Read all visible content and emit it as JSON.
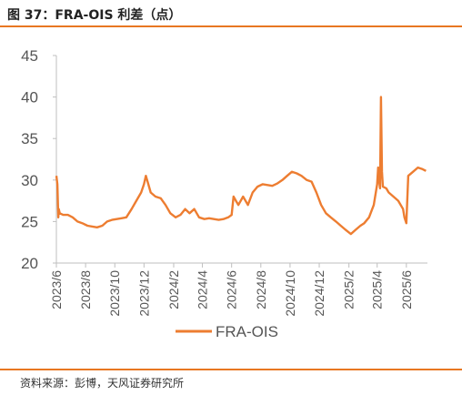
{
  "figure": {
    "title": "图 37：FRA-OIS 利差（点）",
    "source": "资料来源：彭博，天风证券研究所"
  },
  "colors": {
    "accent": "#e87722",
    "line": "#ed7d31",
    "axis": "#bfbfbf",
    "text": "#555555"
  },
  "chart_data": {
    "type": "line",
    "title": "",
    "xlabel": "",
    "ylabel": "",
    "ylim": [
      20,
      45
    ],
    "yticks": [
      "20",
      "25",
      "30",
      "35",
      "40",
      "45"
    ],
    "xlim": [
      "2023-06-01",
      "2025-07-15"
    ],
    "xticks": [
      {
        "label": "2023/6",
        "date": "2023-06-01"
      },
      {
        "label": "2023/8",
        "date": "2023-08-01"
      },
      {
        "label": "2023/10",
        "date": "2023-10-01"
      },
      {
        "label": "2023/12",
        "date": "2023-12-01"
      },
      {
        "label": "2024/2",
        "date": "2024-02-01"
      },
      {
        "label": "2024/4",
        "date": "2024-04-01"
      },
      {
        "label": "2024/6",
        "date": "2024-06-01"
      },
      {
        "label": "2024/8",
        "date": "2024-08-01"
      },
      {
        "label": "2024/10",
        "date": "2024-10-01"
      },
      {
        "label": "2024/12",
        "date": "2024-12-01"
      },
      {
        "label": "2025/2",
        "date": "2025-02-01"
      },
      {
        "label": "2025/4",
        "date": "2025-04-01"
      },
      {
        "label": "2025/6",
        "date": "2025-06-01"
      }
    ],
    "grid": false,
    "legend_position": "bottom",
    "series": [
      {
        "name": "FRA-OIS",
        "x": [
          "2023-06-01",
          "2023-06-03",
          "2023-06-05",
          "2023-06-06",
          "2023-06-08",
          "2023-06-15",
          "2023-06-25",
          "2023-07-05",
          "2023-07-15",
          "2023-07-25",
          "2023-08-05",
          "2023-08-15",
          "2023-08-25",
          "2023-09-05",
          "2023-09-15",
          "2023-09-25",
          "2023-10-05",
          "2023-10-15",
          "2023-10-25",
          "2023-11-05",
          "2023-11-15",
          "2023-11-25",
          "2023-12-01",
          "2023-12-05",
          "2023-12-10",
          "2023-12-15",
          "2023-12-25",
          "2024-01-05",
          "2024-01-15",
          "2024-01-25",
          "2024-02-05",
          "2024-02-15",
          "2024-02-25",
          "2024-03-05",
          "2024-03-15",
          "2024-03-25",
          "2024-04-05",
          "2024-04-15",
          "2024-04-25",
          "2024-05-05",
          "2024-05-15",
          "2024-05-25",
          "2024-06-01",
          "2024-06-05",
          "2024-06-10",
          "2024-06-15",
          "2024-06-25",
          "2024-07-05",
          "2024-07-15",
          "2024-07-25",
          "2024-08-05",
          "2024-08-15",
          "2024-08-25",
          "2024-09-05",
          "2024-09-15",
          "2024-09-25",
          "2024-10-05",
          "2024-10-15",
          "2024-10-25",
          "2024-11-05",
          "2024-11-15",
          "2024-11-25",
          "2024-12-05",
          "2024-12-15",
          "2024-12-25",
          "2025-01-05",
          "2025-01-15",
          "2025-01-25",
          "2025-02-05",
          "2025-02-15",
          "2025-02-25",
          "2025-03-05",
          "2025-03-15",
          "2025-03-25",
          "2025-04-01",
          "2025-04-03",
          "2025-04-05",
          "2025-04-07",
          "2025-04-09",
          "2025-04-11",
          "2025-04-13",
          "2025-04-20",
          "2025-04-25",
          "2025-05-05",
          "2025-05-15",
          "2025-05-25",
          "2025-05-28",
          "2025-06-01",
          "2025-06-05",
          "2025-06-15",
          "2025-06-25",
          "2025-07-05",
          "2025-07-12"
        ],
        "y": [
          30.5,
          29.5,
          25.5,
          26.5,
          26.0,
          25.8,
          25.8,
          25.5,
          25.0,
          24.8,
          24.5,
          24.4,
          24.3,
          24.5,
          25.0,
          25.2,
          25.3,
          25.4,
          25.5,
          26.5,
          27.5,
          28.5,
          29.5,
          30.5,
          29.5,
          28.5,
          28.0,
          27.8,
          27.0,
          26.0,
          25.5,
          25.8,
          26.5,
          26.0,
          26.5,
          25.5,
          25.3,
          25.4,
          25.3,
          25.2,
          25.3,
          25.5,
          25.8,
          28.0,
          27.5,
          27.0,
          28.0,
          27.0,
          28.5,
          29.2,
          29.5,
          29.4,
          29.3,
          29.6,
          30.0,
          30.5,
          31.0,
          30.8,
          30.5,
          30.0,
          29.8,
          28.5,
          27.0,
          26.0,
          25.5,
          25.0,
          24.5,
          24.0,
          23.5,
          24.0,
          24.5,
          24.8,
          25.5,
          27.0,
          29.5,
          31.5,
          30.0,
          29.0,
          40.0,
          31.0,
          29.2,
          29.0,
          28.5,
          28.0,
          27.5,
          26.5,
          25.5,
          24.8,
          30.5,
          31.0,
          31.5,
          31.3,
          31.1
        ]
      }
    ]
  }
}
